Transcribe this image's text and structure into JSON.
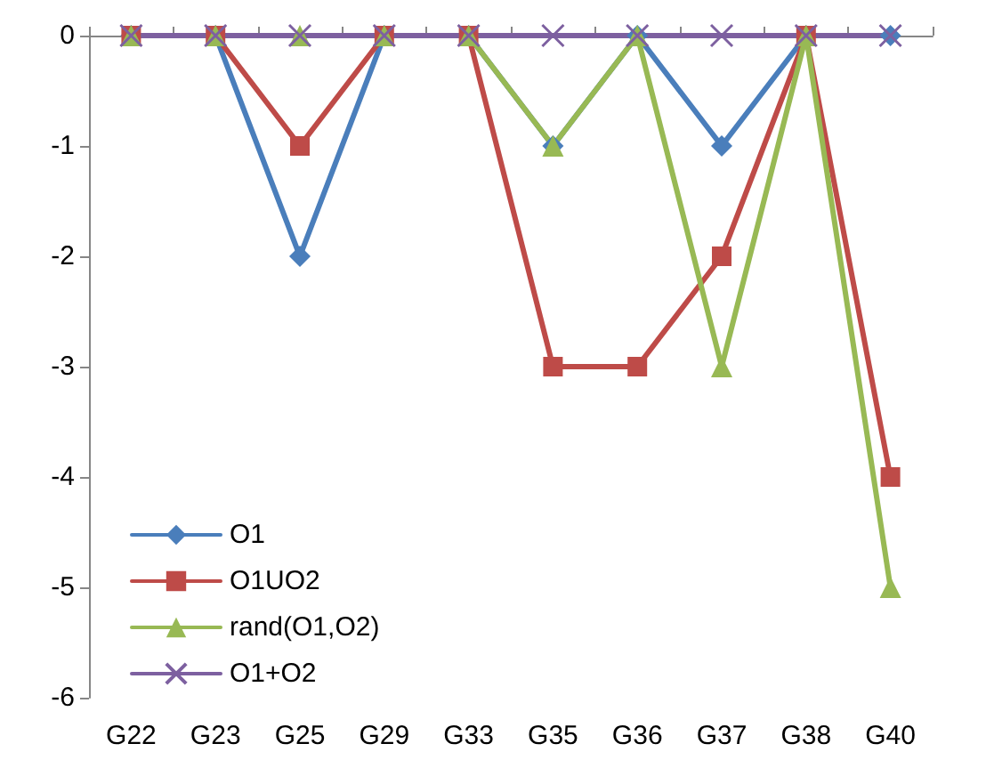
{
  "chart_data": {
    "type": "line",
    "categories": [
      "G22",
      "G23",
      "G25",
      "G29",
      "G33",
      "G35",
      "G36",
      "G37",
      "G38",
      "G40"
    ],
    "series": [
      {
        "name": "O1",
        "color": "#4a7ebb",
        "marker": "diamond",
        "values": [
          0,
          0,
          -2,
          0,
          0,
          -1,
          0,
          -1,
          0,
          0
        ]
      },
      {
        "name": "O1UO2",
        "color": "#be4b48",
        "marker": "square",
        "values": [
          0,
          0,
          -1,
          0,
          0,
          -3,
          -3,
          -2,
          0,
          -4
        ]
      },
      {
        "name": "rand(O1,O2)",
        "color": "#98b954",
        "marker": "triangle",
        "values": [
          0,
          0,
          0,
          0,
          0,
          -1,
          0,
          -3,
          0,
          -5
        ]
      },
      {
        "name": "O1+O2",
        "color": "#7d60a0",
        "marker": "cross",
        "values": [
          0,
          0,
          0,
          0,
          0,
          0,
          0,
          0,
          0,
          0
        ]
      }
    ],
    "ylim": [
      -6,
      0
    ],
    "yticks": [
      -6,
      -5,
      -4,
      -3,
      -2,
      -1,
      0
    ],
    "grid": false,
    "legend": "bottom left",
    "line_style": "solid"
  }
}
